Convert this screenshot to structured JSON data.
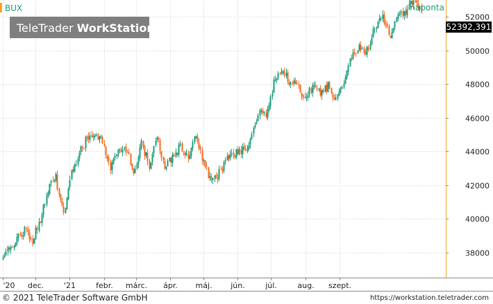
{
  "header": {
    "symbol": "BUX",
    "interval": "naponta"
  },
  "watermark": {
    "brand_light": "TeleTrader",
    "brand_bold": "WorkStation"
  },
  "last_price": {
    "label": "52392,391"
  },
  "footer": {
    "copyright": "© 2021 TeleTrader Software GmbH",
    "url": "https://workstation.teletrader.com"
  },
  "colors": {
    "up": "#1a9c7a",
    "down": "#f26a21",
    "accent": "#f5a623",
    "price_tag": "#000000"
  },
  "chart_data": {
    "type": "candlestick",
    "title": "BUX",
    "interval": "naponta",
    "ylim": [
      36500,
      53000
    ],
    "y_ticks": [
      38000,
      40000,
      42000,
      44000,
      46000,
      48000,
      50000,
      52000
    ],
    "x_ticks": [
      {
        "label": "'20",
        "week": 0
      },
      {
        "label": "dec.",
        "week": 4.2
      },
      {
        "label": "'21",
        "week": 8.6
      },
      {
        "label": "febr.",
        "week": 13.0
      },
      {
        "label": "márc.",
        "week": 17.1
      },
      {
        "label": "ápr.",
        "week": 21.5
      },
      {
        "label": "máj.",
        "week": 25.8
      },
      {
        "label": "jún.",
        "week": 30.2
      },
      {
        "label": "júl.",
        "week": 34.5
      },
      {
        "label": "aug.",
        "week": 38.9
      },
      {
        "label": "szept.",
        "week": 43.3
      }
    ],
    "weekly_close": [
      37600,
      38200,
      38900,
      39300,
      38700,
      40000,
      41800,
      42400,
      40400,
      42700,
      43900,
      44800,
      45000,
      44600,
      43000,
      43900,
      44200,
      42800,
      44500,
      43200,
      44900,
      43200,
      43600,
      44300,
      43700,
      44900,
      43400,
      42100,
      42700,
      43500,
      43900,
      44100,
      44500,
      46300,
      46200,
      48000,
      48900,
      48200,
      47800,
      47200,
      47800,
      47500,
      47900,
      47100,
      48000,
      49700,
      50200,
      50000,
      51300,
      52100,
      50700,
      52000,
      52400,
      52900,
      52392
    ],
    "last_value": 52392.391,
    "grid": true,
    "legend": "none"
  }
}
